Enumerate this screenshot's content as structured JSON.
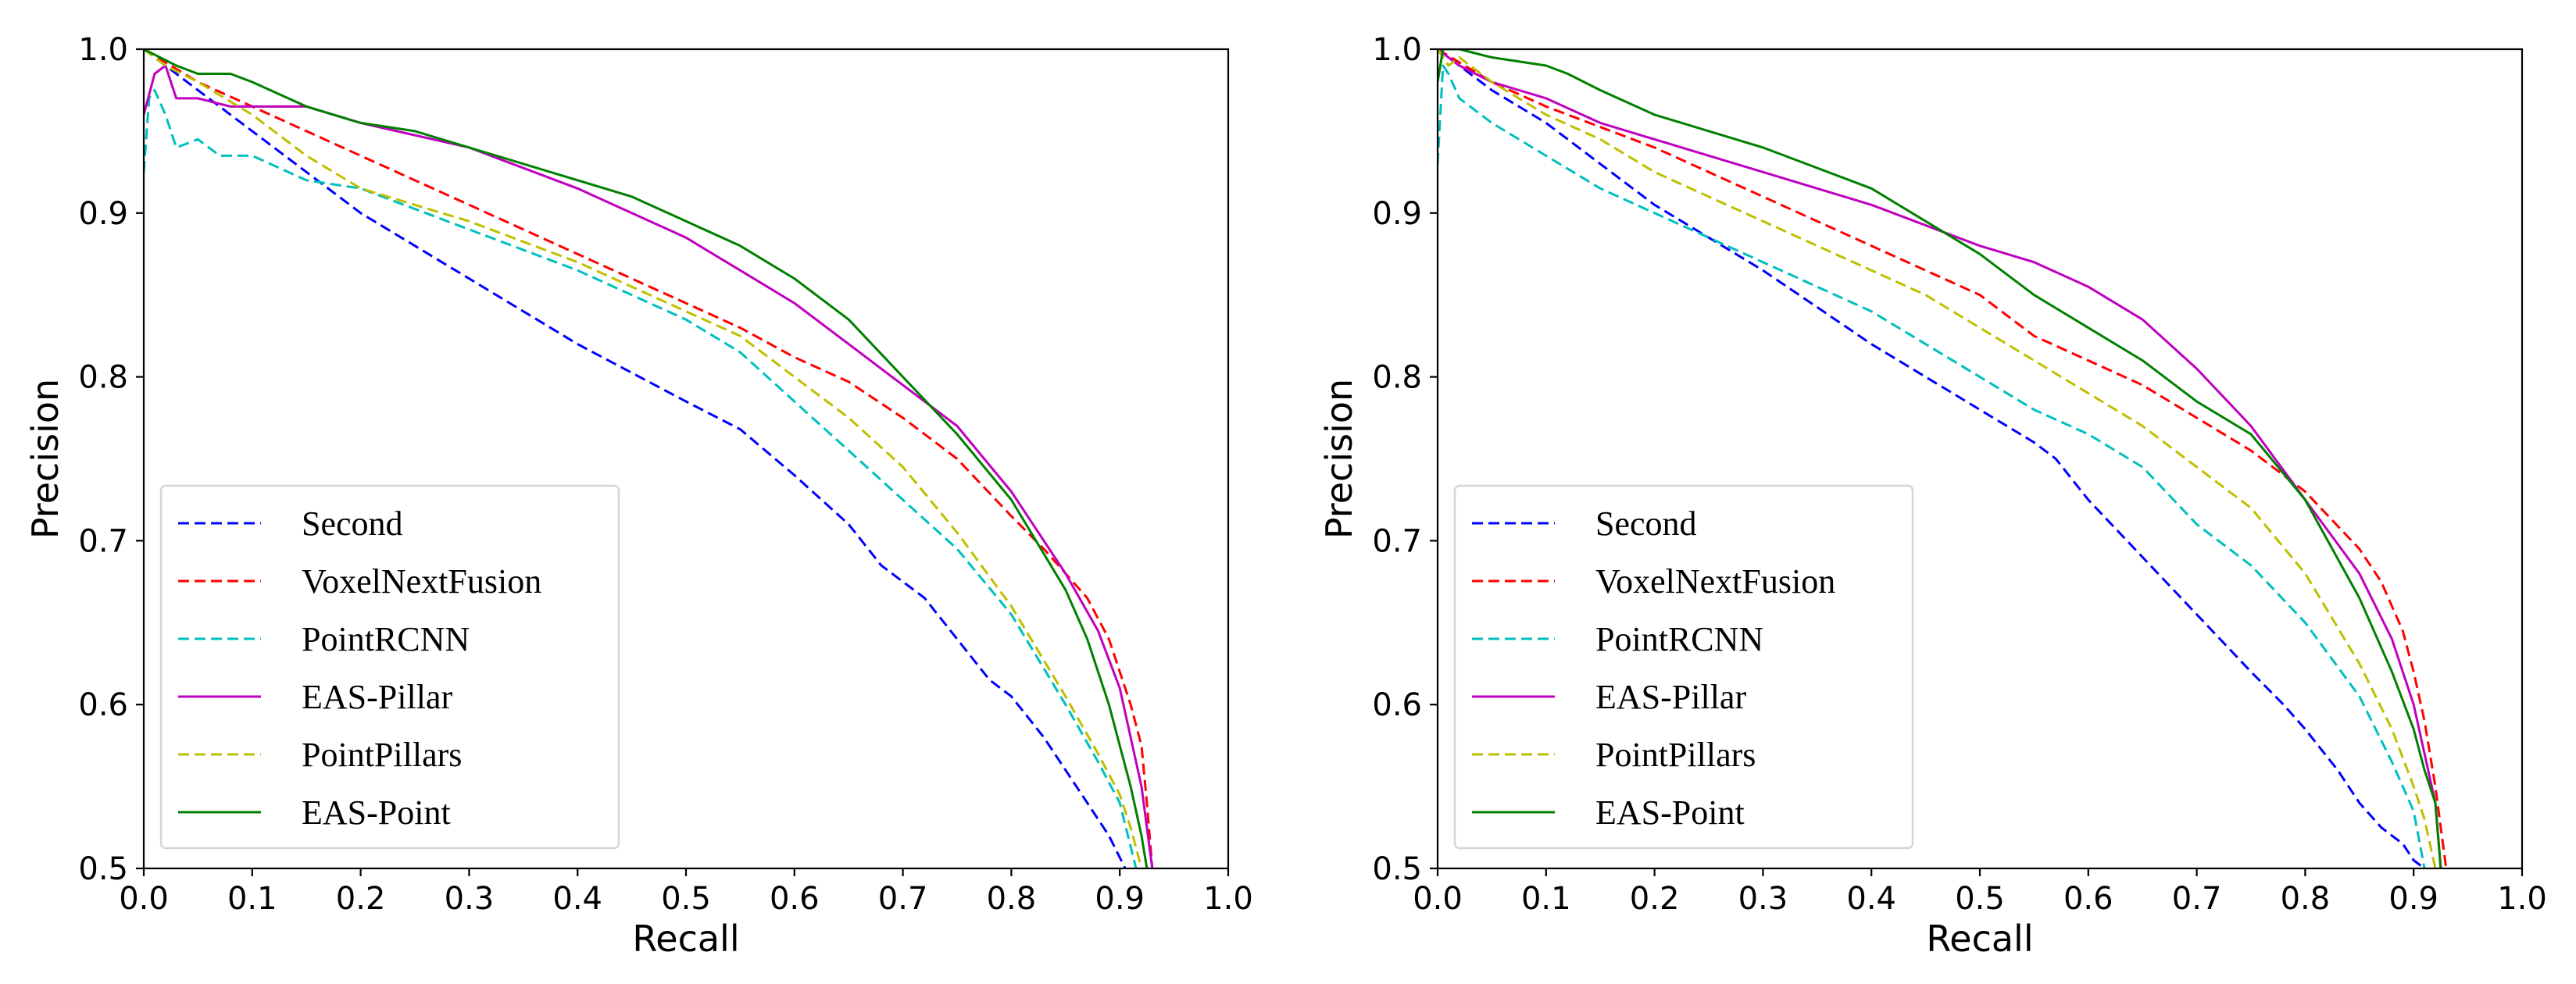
{
  "chart_data": [
    {
      "type": "line",
      "title": "",
      "xlabel": "Recall",
      "ylabel": "Precision",
      "xlim": [
        0.0,
        1.0
      ],
      "ylim": [
        0.5,
        1.0
      ],
      "xticks": [
        "0.0",
        "0.1",
        "0.2",
        "0.3",
        "0.4",
        "0.5",
        "0.6",
        "0.7",
        "0.8",
        "0.9",
        "1.0"
      ],
      "yticks": [
        "0.5",
        "0.6",
        "0.7",
        "0.8",
        "0.9",
        "1.0"
      ],
      "legend_position": "lower-left",
      "series": [
        {
          "name": "Second",
          "color": "#0000ff",
          "dash": "dashed",
          "x": [
            0.0,
            0.02,
            0.05,
            0.1,
            0.15,
            0.2,
            0.3,
            0.4,
            0.5,
            0.55,
            0.6,
            0.65,
            0.68,
            0.72,
            0.75,
            0.78,
            0.8,
            0.83,
            0.85,
            0.87,
            0.89,
            0.905
          ],
          "y": [
            1.0,
            0.99,
            0.975,
            0.95,
            0.925,
            0.9,
            0.86,
            0.82,
            0.785,
            0.768,
            0.74,
            0.71,
            0.685,
            0.665,
            0.64,
            0.615,
            0.605,
            0.58,
            0.56,
            0.54,
            0.52,
            0.5
          ]
        },
        {
          "name": "VoxelNextFusion",
          "color": "#ff0000",
          "dash": "dashed",
          "x": [
            0.0,
            0.05,
            0.1,
            0.2,
            0.3,
            0.4,
            0.5,
            0.55,
            0.6,
            0.65,
            0.7,
            0.75,
            0.8,
            0.83,
            0.85,
            0.87,
            0.89,
            0.9,
            0.91,
            0.92,
            0.925,
            0.93
          ],
          "y": [
            1.0,
            0.98,
            0.965,
            0.935,
            0.905,
            0.875,
            0.845,
            0.83,
            0.812,
            0.797,
            0.775,
            0.75,
            0.715,
            0.695,
            0.68,
            0.665,
            0.64,
            0.62,
            0.6,
            0.575,
            0.54,
            0.5
          ]
        },
        {
          "name": "PointRCNN",
          "color": "#00bfbf",
          "dash": "dashed",
          "x": [
            0.0,
            0.005,
            0.01,
            0.02,
            0.03,
            0.05,
            0.07,
            0.1,
            0.15,
            0.2,
            0.3,
            0.4,
            0.5,
            0.55,
            0.6,
            0.65,
            0.7,
            0.75,
            0.8,
            0.85,
            0.88,
            0.9,
            0.915
          ],
          "y": [
            0.925,
            0.97,
            0.975,
            0.96,
            0.94,
            0.945,
            0.935,
            0.935,
            0.92,
            0.915,
            0.89,
            0.865,
            0.835,
            0.815,
            0.785,
            0.755,
            0.725,
            0.695,
            0.655,
            0.6,
            0.565,
            0.54,
            0.5
          ]
        },
        {
          "name": "EAS-Pillar",
          "color": "#bf00bf",
          "dash": "solid",
          "x": [
            0.0,
            0.01,
            0.02,
            0.03,
            0.05,
            0.08,
            0.1,
            0.15,
            0.2,
            0.3,
            0.4,
            0.5,
            0.55,
            0.6,
            0.65,
            0.7,
            0.75,
            0.8,
            0.85,
            0.88,
            0.9,
            0.91,
            0.92,
            0.93
          ],
          "y": [
            0.96,
            0.985,
            0.99,
            0.97,
            0.97,
            0.965,
            0.965,
            0.965,
            0.955,
            0.94,
            0.915,
            0.885,
            0.865,
            0.845,
            0.82,
            0.795,
            0.77,
            0.73,
            0.68,
            0.645,
            0.61,
            0.58,
            0.55,
            0.5
          ]
        },
        {
          "name": "PointPillars",
          "color": "#bfbf00",
          "dash": "dashed",
          "x": [
            0.0,
            0.02,
            0.05,
            0.1,
            0.15,
            0.2,
            0.25,
            0.3,
            0.4,
            0.5,
            0.55,
            0.6,
            0.65,
            0.7,
            0.75,
            0.8,
            0.85,
            0.88,
            0.9,
            0.91,
            0.92
          ],
          "y": [
            1.0,
            0.99,
            0.98,
            0.96,
            0.935,
            0.915,
            0.905,
            0.895,
            0.87,
            0.84,
            0.825,
            0.8,
            0.775,
            0.745,
            0.705,
            0.66,
            0.605,
            0.57,
            0.545,
            0.525,
            0.5
          ]
        },
        {
          "name": "EAS-Point",
          "color": "#008000",
          "dash": "solid",
          "x": [
            0.0,
            0.03,
            0.05,
            0.08,
            0.1,
            0.15,
            0.2,
            0.25,
            0.3,
            0.4,
            0.45,
            0.5,
            0.55,
            0.6,
            0.65,
            0.7,
            0.75,
            0.8,
            0.85,
            0.87,
            0.89,
            0.9,
            0.91,
            0.92,
            0.925
          ],
          "y": [
            1.0,
            0.99,
            0.985,
            0.985,
            0.98,
            0.965,
            0.955,
            0.95,
            0.94,
            0.92,
            0.91,
            0.895,
            0.88,
            0.86,
            0.835,
            0.8,
            0.765,
            0.725,
            0.67,
            0.64,
            0.6,
            0.575,
            0.55,
            0.52,
            0.5
          ]
        }
      ]
    },
    {
      "type": "line",
      "title": "",
      "xlabel": "Recall",
      "ylabel": "Precision",
      "xlim": [
        0.0,
        1.0
      ],
      "ylim": [
        0.5,
        1.0
      ],
      "xticks": [
        "0.0",
        "0.1",
        "0.2",
        "0.3",
        "0.4",
        "0.5",
        "0.6",
        "0.7",
        "0.8",
        "0.9",
        "1.0"
      ],
      "yticks": [
        "0.5",
        "0.6",
        "0.7",
        "0.8",
        "0.9",
        "1.0"
      ],
      "legend_position": "lower-left",
      "series": [
        {
          "name": "Second",
          "color": "#0000ff",
          "dash": "dashed",
          "x": [
            0.0,
            0.02,
            0.05,
            0.1,
            0.15,
            0.2,
            0.3,
            0.4,
            0.5,
            0.55,
            0.57,
            0.6,
            0.65,
            0.7,
            0.75,
            0.78,
            0.8,
            0.83,
            0.85,
            0.87,
            0.89,
            0.9,
            0.91
          ],
          "y": [
            1.0,
            0.99,
            0.975,
            0.955,
            0.93,
            0.905,
            0.865,
            0.82,
            0.78,
            0.76,
            0.75,
            0.725,
            0.69,
            0.655,
            0.62,
            0.6,
            0.585,
            0.56,
            0.54,
            0.525,
            0.515,
            0.505,
            0.5
          ]
        },
        {
          "name": "VoxelNextFusion",
          "color": "#ff0000",
          "dash": "dashed",
          "x": [
            0.0,
            0.05,
            0.1,
            0.2,
            0.3,
            0.4,
            0.5,
            0.55,
            0.6,
            0.65,
            0.7,
            0.75,
            0.8,
            0.85,
            0.87,
            0.89,
            0.9,
            0.91,
            0.92,
            0.93
          ],
          "y": [
            1.0,
            0.98,
            0.965,
            0.94,
            0.91,
            0.88,
            0.85,
            0.825,
            0.81,
            0.795,
            0.775,
            0.755,
            0.73,
            0.695,
            0.675,
            0.645,
            0.62,
            0.59,
            0.55,
            0.5
          ]
        },
        {
          "name": "PointRCNN",
          "color": "#00bfbf",
          "dash": "dashed",
          "x": [
            0.0,
            0.005,
            0.01,
            0.02,
            0.05,
            0.1,
            0.15,
            0.2,
            0.3,
            0.4,
            0.5,
            0.55,
            0.6,
            0.65,
            0.7,
            0.75,
            0.8,
            0.85,
            0.88,
            0.9,
            0.91
          ],
          "y": [
            0.93,
            0.99,
            0.985,
            0.97,
            0.955,
            0.935,
            0.915,
            0.9,
            0.87,
            0.84,
            0.8,
            0.78,
            0.765,
            0.745,
            0.71,
            0.685,
            0.65,
            0.605,
            0.565,
            0.535,
            0.5
          ]
        },
        {
          "name": "EAS-Pillar",
          "color": "#bf00bf",
          "dash": "solid",
          "x": [
            0.0,
            0.02,
            0.05,
            0.1,
            0.15,
            0.2,
            0.3,
            0.4,
            0.5,
            0.55,
            0.6,
            0.65,
            0.7,
            0.75,
            0.8,
            0.85,
            0.88,
            0.9,
            0.91,
            0.92,
            0.925
          ],
          "y": [
            1.0,
            0.99,
            0.98,
            0.97,
            0.955,
            0.945,
            0.925,
            0.905,
            0.88,
            0.87,
            0.855,
            0.835,
            0.805,
            0.77,
            0.725,
            0.68,
            0.64,
            0.6,
            0.57,
            0.54,
            0.5
          ]
        },
        {
          "name": "PointPillars",
          "color": "#bfbf00",
          "dash": "dashed",
          "x": [
            0.0,
            0.01,
            0.02,
            0.05,
            0.1,
            0.15,
            0.2,
            0.3,
            0.4,
            0.45,
            0.5,
            0.55,
            0.6,
            0.65,
            0.7,
            0.75,
            0.8,
            0.85,
            0.88,
            0.9,
            0.91,
            0.92
          ],
          "y": [
            1.0,
            0.99,
            0.995,
            0.98,
            0.96,
            0.945,
            0.925,
            0.895,
            0.865,
            0.85,
            0.83,
            0.81,
            0.79,
            0.77,
            0.745,
            0.72,
            0.68,
            0.625,
            0.585,
            0.55,
            0.53,
            0.5
          ]
        },
        {
          "name": "EAS-Point",
          "color": "#008000",
          "dash": "solid",
          "x": [
            0.0,
            0.005,
            0.02,
            0.05,
            0.1,
            0.12,
            0.15,
            0.2,
            0.3,
            0.4,
            0.45,
            0.5,
            0.55,
            0.6,
            0.65,
            0.7,
            0.75,
            0.8,
            0.85,
            0.88,
            0.9,
            0.91,
            0.92,
            0.925
          ],
          "y": [
            0.98,
            1.0,
            1.0,
            0.995,
            0.99,
            0.985,
            0.975,
            0.96,
            0.94,
            0.915,
            0.895,
            0.875,
            0.85,
            0.83,
            0.81,
            0.785,
            0.765,
            0.725,
            0.665,
            0.62,
            0.585,
            0.56,
            0.54,
            0.5
          ]
        }
      ]
    }
  ]
}
